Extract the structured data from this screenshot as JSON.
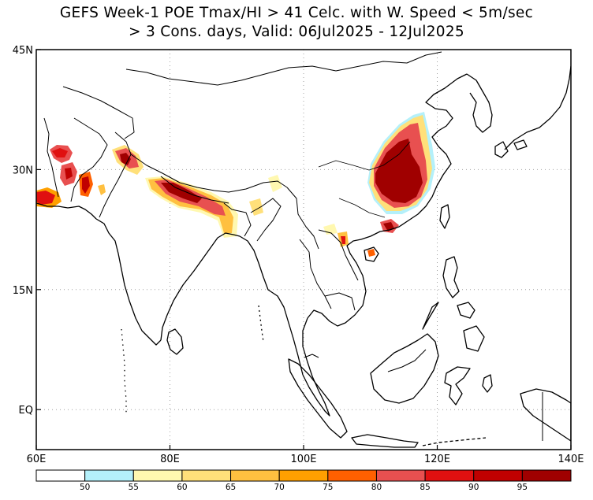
{
  "title": {
    "line1": "GEFS Week-1 POE Tmax/HI > 41 Celc. with W. Speed < 5m/sec",
    "line2": "> 3 Cons. days, Valid: 06Jul2025 - 12Jul2025"
  },
  "axes": {
    "lon_ticks": [
      {
        "value": 60,
        "label": "60E"
      },
      {
        "value": 80,
        "label": "80E"
      },
      {
        "value": 100,
        "label": "100E"
      },
      {
        "value": 120,
        "label": "120E"
      },
      {
        "value": 140,
        "label": "140E"
      }
    ],
    "lat_ticks": [
      {
        "value": 45,
        "label": "45N"
      },
      {
        "value": 30,
        "label": "30N"
      },
      {
        "value": 15,
        "label": "15N"
      },
      {
        "value": 0,
        "label": "EQ"
      }
    ],
    "lon_range": [
      60,
      140
    ],
    "lat_range": [
      -5,
      45
    ],
    "grid": true
  },
  "colorbar": {
    "colors": [
      "#ffffff",
      "#b4f0fa",
      "#fff8b0",
      "#ffe07a",
      "#ffc040",
      "#ffa000",
      "#ff6000",
      "#e85050",
      "#e01010",
      "#c00000",
      "#a00000"
    ],
    "labels": [
      "50",
      "55",
      "60",
      "65",
      "70",
      "75",
      "80",
      "85",
      "90",
      "95"
    ]
  },
  "colors": {
    "background": "#ffffff",
    "coastline": "#000000",
    "grid": "#a0a0a0"
  }
}
